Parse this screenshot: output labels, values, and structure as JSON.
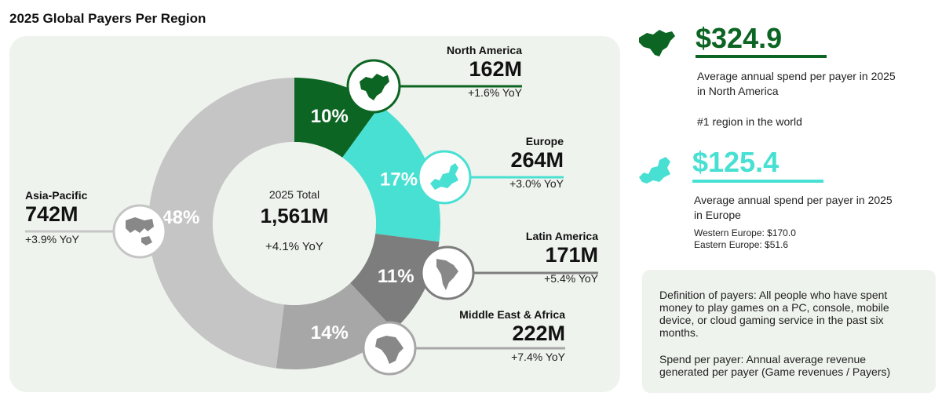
{
  "title": "2025 Global Payers Per Region",
  "center": {
    "label": "2025 Total",
    "value": "1,561M",
    "yoy": "+4.1% YoY"
  },
  "colors": {
    "north_america": "#0c6522",
    "europe": "#47e0d2",
    "latin_america": "#7d7d7d",
    "middle_east_africa": "#a7a7a7",
    "asia_pacific": "#c5c5c5",
    "accent_dark_green": "#0c6522",
    "accent_teal": "#47e0d2",
    "panel_bg": "#eff3ee"
  },
  "chart_data": {
    "type": "pie",
    "title": "2025 Global Payers Per Region",
    "series": [
      {
        "name": "North America",
        "percent": 10,
        "payers_millions": 162,
        "value_label": "162M",
        "yoy": "+1.6% YoY",
        "percent_label": "10%",
        "icon": "north-america-map-icon"
      },
      {
        "name": "Europe",
        "percent": 17,
        "payers_millions": 264,
        "value_label": "264M",
        "yoy": "+3.0% YoY",
        "percent_label": "17%",
        "icon": "europe-map-icon"
      },
      {
        "name": "Latin America",
        "percent": 11,
        "payers_millions": 171,
        "value_label": "171M",
        "yoy": "+5.4% YoY",
        "percent_label": "11%",
        "icon": "latin-america-map-icon"
      },
      {
        "name": "Middle East & Africa",
        "percent": 14,
        "payers_millions": 222,
        "value_label": "222M",
        "yoy": "+7.4% YoY",
        "percent_label": "14%",
        "icon": "africa-map-icon"
      },
      {
        "name": "Asia-Pacific",
        "percent": 48,
        "payers_millions": 742,
        "value_label": "742M",
        "yoy": "+3.9% YoY",
        "percent_label": "48%",
        "icon": "asia-pacific-map-icon"
      }
    ],
    "total": "1,561M",
    "total_yoy": "+4.1% YoY"
  },
  "stats": {
    "north_america": {
      "value": "$324.9",
      "text1": "Average annual spend per payer in 2025",
      "text2": "in North America",
      "note": "#1 region in the world"
    },
    "europe": {
      "value": "$125.4",
      "text1": "Average annual spend per payer in 2025",
      "text2": "in Europe",
      "west": "Western Europe: $170.0",
      "east": "Eastern Europe: $51.6"
    }
  },
  "definitions": {
    "payers": [
      "Definition of payers: All people who have spent",
      "money to play games on a PC, console, mobile",
      "device, or cloud gaming service in the past six",
      "months."
    ],
    "spend": [
      "Spend per payer: Annual average revenue",
      "generated per payer (Game revenues / Payers)"
    ]
  }
}
